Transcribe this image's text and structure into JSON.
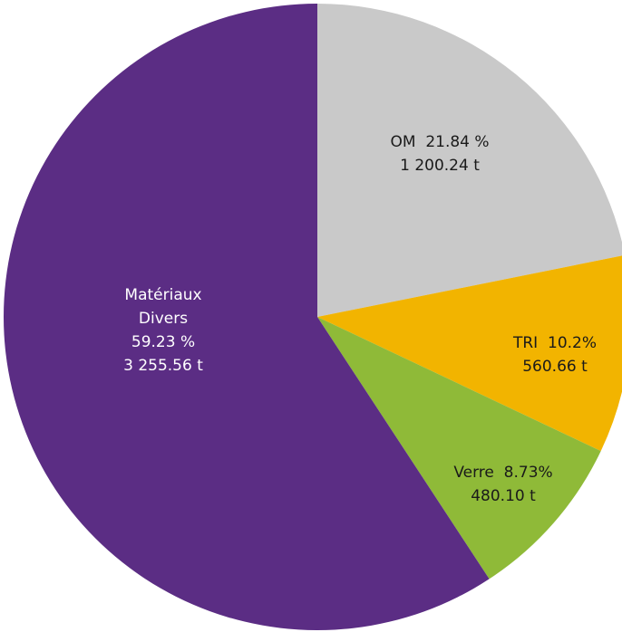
{
  "chart_data": {
    "type": "pie",
    "categories": [
      "OM",
      "TRI",
      "Verre",
      "Matériaux Divers"
    ],
    "values": [
      21.84,
      10.2,
      8.73,
      59.23
    ],
    "value_labels": [
      "21.84 %",
      "10.2%",
      "8.73%",
      "59.23 %"
    ],
    "tonnes": [
      1200.24,
      560.66,
      480.1,
      3255.56
    ],
    "tonnes_labels": [
      "1 200.24 t",
      "560.66 t",
      "480.10 t",
      "3 255.56 t"
    ],
    "colors": [
      "#c9c9c9",
      "#f2b400",
      "#8fba38",
      "#5b2d84"
    ]
  }
}
